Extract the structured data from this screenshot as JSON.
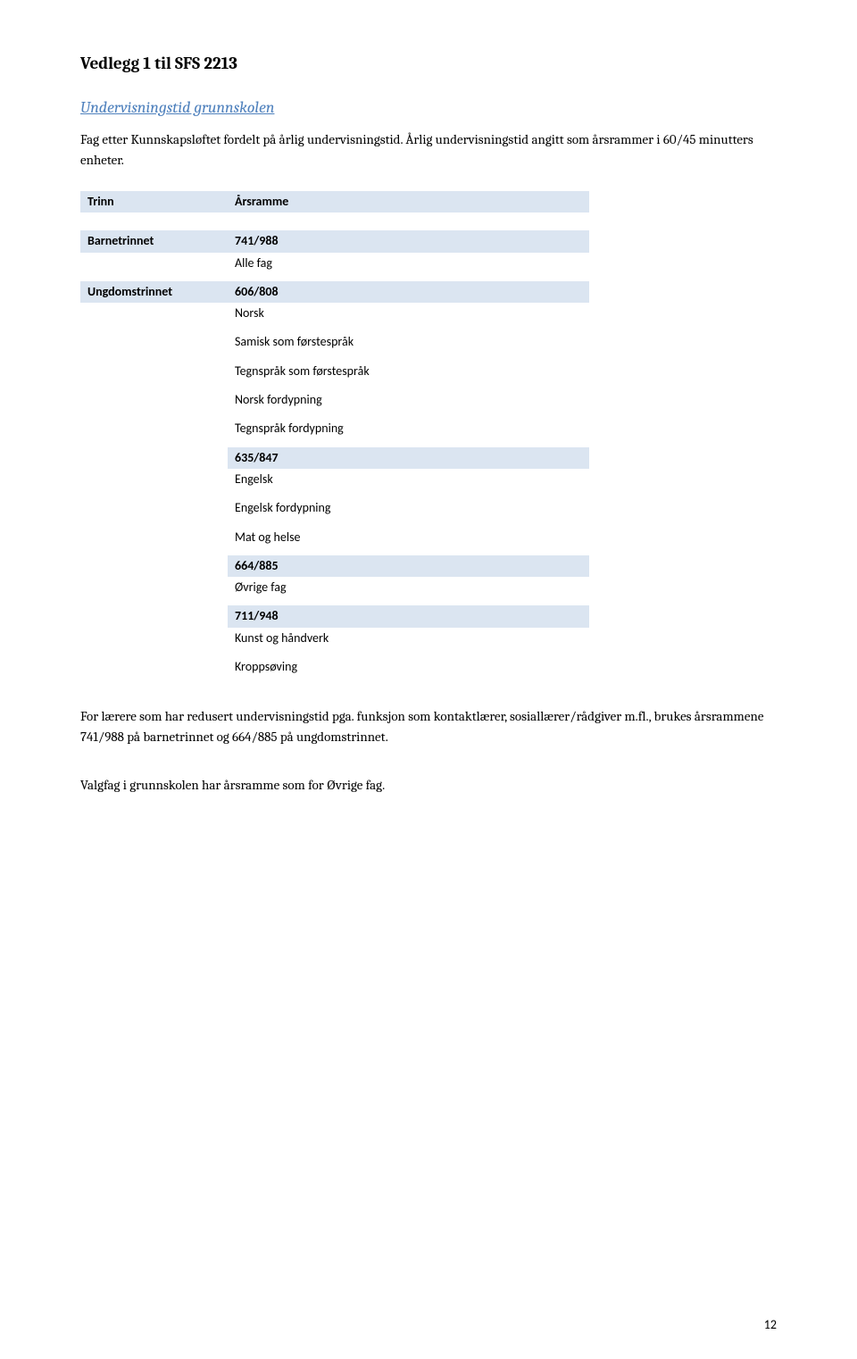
{
  "colors": {
    "shaded_bg": "#dbe5f1",
    "heading_color": "#4f81bd",
    "text": "#000000",
    "background": "#ffffff"
  },
  "title": "Vedlegg 1 til SFS 2213",
  "section_heading": "Undervisningstid grunnskolen",
  "intro": "Fag etter Kunnskapsløftet fordelt på årlig undervisningstid. Årlig undervisningstid angitt som årsrammer i 60/45 minutters enheter.",
  "table_header": {
    "left": "Trinn",
    "right": "Årsramme"
  },
  "barnetrinnet": {
    "label": "Barnetrinnet",
    "value": "741/988",
    "desc": "Alle fag"
  },
  "ungdomstrinnet": {
    "label": "Ungdomstrinnet",
    "group1": {
      "value": "606/808",
      "items": [
        "Norsk",
        "Samisk som førstespråk",
        "Tegnspråk som førstespråk",
        "Norsk fordypning",
        "Tegnspråk fordypning"
      ]
    },
    "group2": {
      "value": "635/847",
      "items": [
        "Engelsk",
        "Engelsk fordypning",
        "Mat og helse"
      ]
    },
    "group3": {
      "value": "664/885",
      "items": [
        "Øvrige fag"
      ]
    },
    "group4": {
      "value": "711/948",
      "items": [
        "Kunst og håndverk",
        "Kroppsøving"
      ]
    }
  },
  "footer1": "For lærere som har redusert undervisningstid pga. funksjon som kontaktlærer, sosiallærer/rådgiver m.fl., brukes årsrammene 741/988 på barnetrinnet og 664/885 på ungdomstrinnet.",
  "footer2": "Valgfag i grunnskolen har årsramme som for Øvrige fag.",
  "page_number": "12"
}
